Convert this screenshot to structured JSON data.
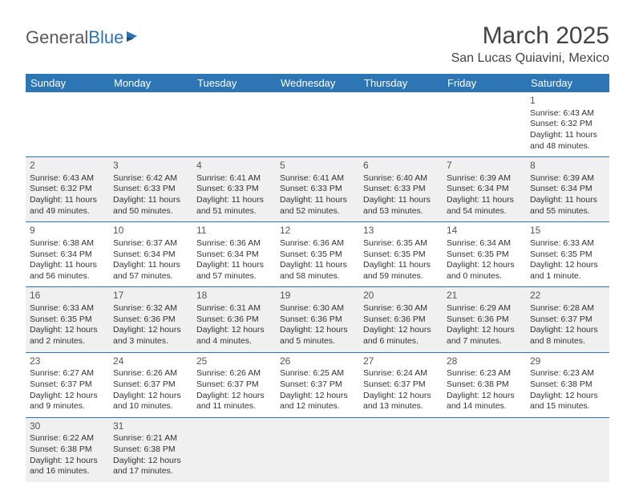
{
  "logo": {
    "text1": "General",
    "text2": "Blue"
  },
  "header": {
    "month_title": "March 2025",
    "location": "San Lucas Quiavini, Mexico"
  },
  "colors": {
    "header_bg": "#2e75b6",
    "header_text": "#ffffff",
    "shaded_bg": "#f0f0f0",
    "border": "#2e75b6"
  },
  "weekdays": [
    "Sunday",
    "Monday",
    "Tuesday",
    "Wednesday",
    "Thursday",
    "Friday",
    "Saturday"
  ],
  "weeks": [
    [
      null,
      null,
      null,
      null,
      null,
      null,
      {
        "n": "1",
        "sr": "Sunrise: 6:43 AM",
        "ss": "Sunset: 6:32 PM",
        "dl": "Daylight: 11 hours and 48 minutes."
      }
    ],
    [
      {
        "n": "2",
        "sr": "Sunrise: 6:43 AM",
        "ss": "Sunset: 6:32 PM",
        "dl": "Daylight: 11 hours and 49 minutes."
      },
      {
        "n": "3",
        "sr": "Sunrise: 6:42 AM",
        "ss": "Sunset: 6:33 PM",
        "dl": "Daylight: 11 hours and 50 minutes."
      },
      {
        "n": "4",
        "sr": "Sunrise: 6:41 AM",
        "ss": "Sunset: 6:33 PM",
        "dl": "Daylight: 11 hours and 51 minutes."
      },
      {
        "n": "5",
        "sr": "Sunrise: 6:41 AM",
        "ss": "Sunset: 6:33 PM",
        "dl": "Daylight: 11 hours and 52 minutes."
      },
      {
        "n": "6",
        "sr": "Sunrise: 6:40 AM",
        "ss": "Sunset: 6:33 PM",
        "dl": "Daylight: 11 hours and 53 minutes."
      },
      {
        "n": "7",
        "sr": "Sunrise: 6:39 AM",
        "ss": "Sunset: 6:34 PM",
        "dl": "Daylight: 11 hours and 54 minutes."
      },
      {
        "n": "8",
        "sr": "Sunrise: 6:39 AM",
        "ss": "Sunset: 6:34 PM",
        "dl": "Daylight: 11 hours and 55 minutes."
      }
    ],
    [
      {
        "n": "9",
        "sr": "Sunrise: 6:38 AM",
        "ss": "Sunset: 6:34 PM",
        "dl": "Daylight: 11 hours and 56 minutes."
      },
      {
        "n": "10",
        "sr": "Sunrise: 6:37 AM",
        "ss": "Sunset: 6:34 PM",
        "dl": "Daylight: 11 hours and 57 minutes."
      },
      {
        "n": "11",
        "sr": "Sunrise: 6:36 AM",
        "ss": "Sunset: 6:34 PM",
        "dl": "Daylight: 11 hours and 57 minutes."
      },
      {
        "n": "12",
        "sr": "Sunrise: 6:36 AM",
        "ss": "Sunset: 6:35 PM",
        "dl": "Daylight: 11 hours and 58 minutes."
      },
      {
        "n": "13",
        "sr": "Sunrise: 6:35 AM",
        "ss": "Sunset: 6:35 PM",
        "dl": "Daylight: 11 hours and 59 minutes."
      },
      {
        "n": "14",
        "sr": "Sunrise: 6:34 AM",
        "ss": "Sunset: 6:35 PM",
        "dl": "Daylight: 12 hours and 0 minutes."
      },
      {
        "n": "15",
        "sr": "Sunrise: 6:33 AM",
        "ss": "Sunset: 6:35 PM",
        "dl": "Daylight: 12 hours and 1 minute."
      }
    ],
    [
      {
        "n": "16",
        "sr": "Sunrise: 6:33 AM",
        "ss": "Sunset: 6:35 PM",
        "dl": "Daylight: 12 hours and 2 minutes."
      },
      {
        "n": "17",
        "sr": "Sunrise: 6:32 AM",
        "ss": "Sunset: 6:36 PM",
        "dl": "Daylight: 12 hours and 3 minutes."
      },
      {
        "n": "18",
        "sr": "Sunrise: 6:31 AM",
        "ss": "Sunset: 6:36 PM",
        "dl": "Daylight: 12 hours and 4 minutes."
      },
      {
        "n": "19",
        "sr": "Sunrise: 6:30 AM",
        "ss": "Sunset: 6:36 PM",
        "dl": "Daylight: 12 hours and 5 minutes."
      },
      {
        "n": "20",
        "sr": "Sunrise: 6:30 AM",
        "ss": "Sunset: 6:36 PM",
        "dl": "Daylight: 12 hours and 6 minutes."
      },
      {
        "n": "21",
        "sr": "Sunrise: 6:29 AM",
        "ss": "Sunset: 6:36 PM",
        "dl": "Daylight: 12 hours and 7 minutes."
      },
      {
        "n": "22",
        "sr": "Sunrise: 6:28 AM",
        "ss": "Sunset: 6:37 PM",
        "dl": "Daylight: 12 hours and 8 minutes."
      }
    ],
    [
      {
        "n": "23",
        "sr": "Sunrise: 6:27 AM",
        "ss": "Sunset: 6:37 PM",
        "dl": "Daylight: 12 hours and 9 minutes."
      },
      {
        "n": "24",
        "sr": "Sunrise: 6:26 AM",
        "ss": "Sunset: 6:37 PM",
        "dl": "Daylight: 12 hours and 10 minutes."
      },
      {
        "n": "25",
        "sr": "Sunrise: 6:26 AM",
        "ss": "Sunset: 6:37 PM",
        "dl": "Daylight: 12 hours and 11 minutes."
      },
      {
        "n": "26",
        "sr": "Sunrise: 6:25 AM",
        "ss": "Sunset: 6:37 PM",
        "dl": "Daylight: 12 hours and 12 minutes."
      },
      {
        "n": "27",
        "sr": "Sunrise: 6:24 AM",
        "ss": "Sunset: 6:37 PM",
        "dl": "Daylight: 12 hours and 13 minutes."
      },
      {
        "n": "28",
        "sr": "Sunrise: 6:23 AM",
        "ss": "Sunset: 6:38 PM",
        "dl": "Daylight: 12 hours and 14 minutes."
      },
      {
        "n": "29",
        "sr": "Sunrise: 6:23 AM",
        "ss": "Sunset: 6:38 PM",
        "dl": "Daylight: 12 hours and 15 minutes."
      }
    ],
    [
      {
        "n": "30",
        "sr": "Sunrise: 6:22 AM",
        "ss": "Sunset: 6:38 PM",
        "dl": "Daylight: 12 hours and 16 minutes."
      },
      {
        "n": "31",
        "sr": "Sunrise: 6:21 AM",
        "ss": "Sunset: 6:38 PM",
        "dl": "Daylight: 12 hours and 17 minutes."
      },
      null,
      null,
      null,
      null,
      null
    ]
  ]
}
